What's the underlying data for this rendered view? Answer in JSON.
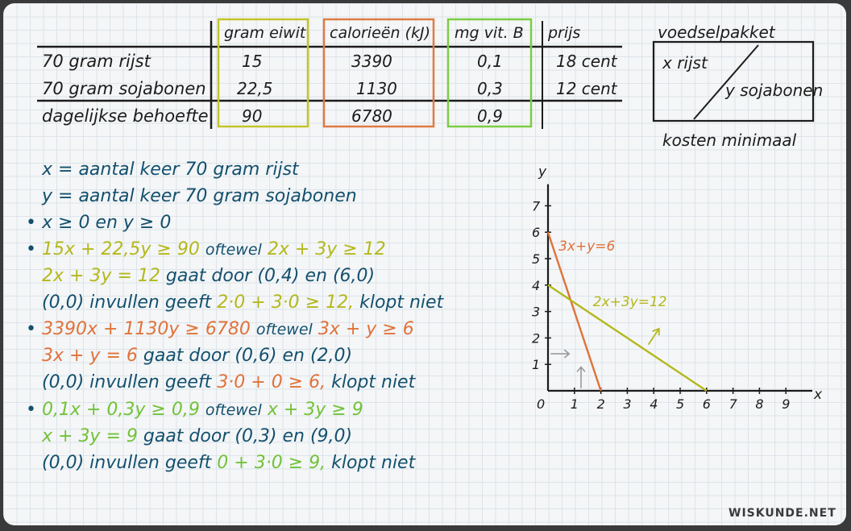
{
  "table": {
    "headers": [
      "gram eiwit",
      "calorieën (kJ)",
      "mg vit. B",
      "prijs"
    ],
    "rows": [
      {
        "label": "70 gram rijst",
        "eiwit": "15",
        "kj": "3390",
        "vitb": "0,1",
        "prijs": "18 cent"
      },
      {
        "label": "70 gram sojabonen",
        "eiwit": "22,5",
        "kj": "1130",
        "vitb": "0,3",
        "prijs": "12 cent"
      },
      {
        "label": "dagelijkse behoefte",
        "eiwit": "90",
        "kj": "6780",
        "vitb": "0,9",
        "prijs": ""
      }
    ]
  },
  "pakket": {
    "title": "voedselpakket",
    "x_label": "x rijst",
    "y_label": "y sojabonen",
    "footer": "kosten minimaal"
  },
  "defs": {
    "x": "x = aantal keer 70 gram rijst",
    "y": "y = aantal keer 70 gram sojabonen"
  },
  "bullet1": "x ≥ 0 en y ≥ 0",
  "eiwit": {
    "ineq": "15x + 22,5y ≥ 90",
    "oftewel": "oftewel",
    "simpl": "2x + 3y ≥ 12",
    "line": "2x + 3y = 12",
    "door_a": "gaat door",
    "door_b": "(0,4) en (6,0)",
    "test_a": "(0,0) invullen geeft",
    "test_b": "2·0 + 3·0 ≥ 12,",
    "test_c": "klopt niet"
  },
  "kj": {
    "ineq": "3390x + 1130y ≥ 6780",
    "oftewel": "oftewel",
    "simpl": "3x + y ≥ 6",
    "line": "3x + y = 6",
    "door_a": "gaat door",
    "door_b": "(0,6) en (2,0)",
    "test_a": "(0,0) invullen geeft",
    "test_b": "3·0 + 0 ≥ 6,",
    "test_c": "klopt niet"
  },
  "vitb": {
    "ineq": "0,1x + 0,3y ≥ 0,9",
    "oftewel": "oftewel",
    "simpl": "x + 3y ≥ 9",
    "line": "x + 3y = 9",
    "door_a": "gaat door",
    "door_b": "(0,3) en (9,0)",
    "test_a": "(0,0) invullen geeft",
    "test_b": "0 + 3·0 ≥ 9,",
    "test_c": "klopt niet"
  },
  "chart_data": {
    "type": "line",
    "xlabel": "x",
    "ylabel": "y",
    "xlim": [
      0,
      10
    ],
    "ylim": [
      0,
      8
    ],
    "x_ticks": [
      "0",
      "1",
      "2",
      "3",
      "4",
      "5",
      "6",
      "7",
      "8",
      "9"
    ],
    "y_ticks": [
      "1",
      "2",
      "3",
      "4",
      "5",
      "6",
      "7"
    ],
    "series": [
      {
        "name": "3x+y=6",
        "points": [
          [
            0,
            6
          ],
          [
            2,
            0
          ]
        ],
        "color": "#e0723a"
      },
      {
        "name": "2x+3y=12",
        "points": [
          [
            0,
            4
          ],
          [
            6,
            0
          ]
        ],
        "color": "#b4b81c"
      }
    ]
  },
  "watermark": "WISKUNDE.NET",
  "colors": {
    "yellow": "#b4b81c",
    "orange": "#e0723a",
    "green": "#72c23a",
    "blue": "#14506e"
  }
}
